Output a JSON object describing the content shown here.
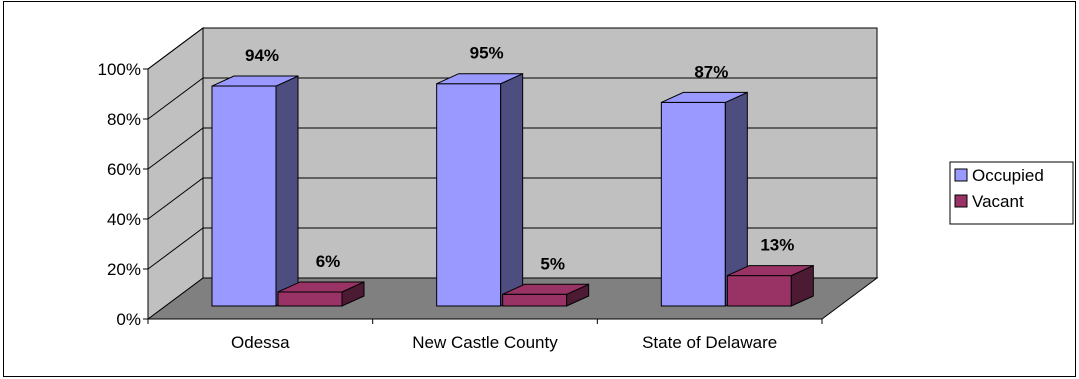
{
  "chart_data": {
    "type": "bar",
    "categories": [
      "Odessa",
      "New Castle County",
      "State of Delaware"
    ],
    "series": [
      {
        "name": "Occupied",
        "values": [
          94,
          95,
          87
        ],
        "labels": [
          "94%",
          "95%",
          "87%"
        ],
        "color": "#9999FF"
      },
      {
        "name": "Vacant",
        "values": [
          6,
          5,
          13
        ],
        "labels": [
          "6%",
          "5%",
          "13%"
        ],
        "color": "#993366"
      }
    ],
    "y_ticks": [
      "0%",
      "20%",
      "40%",
      "60%",
      "80%",
      "100%"
    ],
    "ylim": [
      0,
      100
    ],
    "grid": true,
    "legend": "right",
    "three_d": true,
    "colors": {
      "wall": "#C0C0C0",
      "floor": "#808080",
      "gridline": "#000000"
    }
  }
}
